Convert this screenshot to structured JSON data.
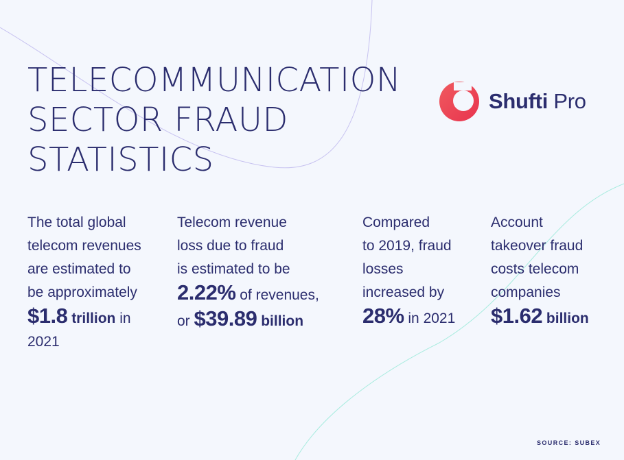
{
  "title": {
    "line1": "TELECOMMUNICATION",
    "line2": "SECTOR FRAUD",
    "line3": "STATISTICS"
  },
  "logo": {
    "name_part1": "Shufti",
    "name_part2": "Pro",
    "mark_color": "#ef4a57"
  },
  "stats": [
    {
      "lines": [
        "The total global",
        "telecom revenues",
        "are estimated to",
        "be approximately"
      ],
      "value": "$1.8",
      "unit": "trillion",
      "suffix": "in",
      "tail": "2021"
    },
    {
      "lines": [
        "Telecom revenue",
        "loss due to fraud",
        "is estimated to be"
      ],
      "value": "2.22%",
      "suffix": "of revenues,",
      "prefix2": "or",
      "value2": "$39.89",
      "unit2": "billion"
    },
    {
      "lines": [
        "Compared",
        "to 2019, fraud",
        "losses",
        "increased by"
      ],
      "value": "28%",
      "suffix": "in 2021"
    },
    {
      "lines": [
        "Account",
        "takeover fraud",
        "costs telecom",
        "companies"
      ],
      "value": "$1.62",
      "unit": "billion"
    }
  ],
  "source": "SOURCE: SUBEX",
  "colors": {
    "text": "#2b2d6e",
    "background": "#f4f7fd",
    "curve_purple": "#c7c2f0",
    "curve_teal": "#a8ecdf"
  }
}
